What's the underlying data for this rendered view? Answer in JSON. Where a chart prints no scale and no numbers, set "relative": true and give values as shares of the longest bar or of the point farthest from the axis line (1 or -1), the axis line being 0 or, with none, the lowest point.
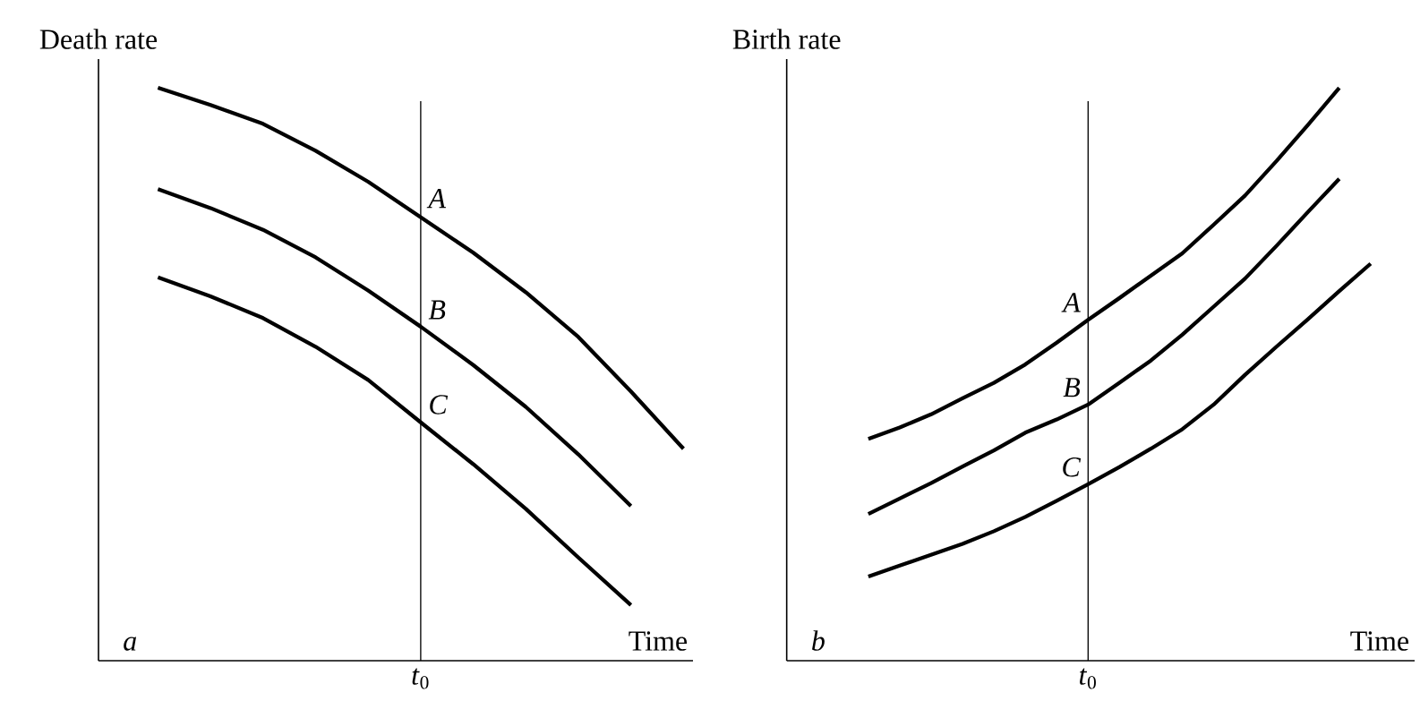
{
  "chart_data": [
    {
      "type": "line",
      "ylabel": "Death rate",
      "xlabel": "Time",
      "relative": true,
      "categories": [
        null,
        null,
        null,
        null,
        null,
        null,
        null,
        null,
        null,
        null,
        null
      ],
      "annotations": [
        "a",
        "*t*$_{0}$",
        "A",
        "B",
        "C"
      ],
      "series": [
        {
          "color": "#000000",
          "values": [
            1.0,
            0.97,
            0.937,
            0.89,
            0.836,
            0.774,
            0.712,
            0.643,
            0.565,
            0.47,
            0.37
          ]
        },
        {
          "color": "#000000",
          "values": [
            0.823,
            0.79,
            0.752,
            0.704,
            0.646,
            0.583,
            0.516,
            0.443,
            0.36,
            0.27,
            null
          ]
        },
        {
          "color": "#000000",
          "values": [
            0.669,
            0.636,
            0.598,
            0.548,
            0.49,
            0.416,
            0.343,
            0.265,
            0.18,
            0.097,
            null
          ]
        }
      ]
    },
    {
      "type": "line",
      "ylabel": "Birth rate",
      "xlabel": "Time",
      "relative": true,
      "categories": [
        null,
        null,
        null,
        null,
        null,
        null,
        null,
        null,
        null,
        null,
        null,
        null,
        null,
        null,
        null,
        null,
        null
      ],
      "annotations": [
        "b",
        "*t*$_{0}$",
        "A",
        "B",
        "C"
      ],
      "series": [
        {
          "color": "#000000",
          "values": [
            0.387,
            0.407,
            0.43,
            0.458,
            0.485,
            0.517,
            0.555,
            0.595,
            0.633,
            0.672,
            0.711,
            0.761,
            0.812,
            0.872,
            0.935,
            1.0,
            null
          ]
        },
        {
          "color": "#000000",
          "values": [
            0.256,
            0.283,
            0.31,
            0.339,
            0.367,
            0.398,
            0.421,
            0.447,
            0.485,
            0.524,
            0.569,
            0.618,
            0.667,
            0.724,
            0.783,
            0.841,
            null
          ]
        },
        {
          "color": "#000000",
          "values": [
            0.147,
            0.166,
            0.185,
            0.204,
            0.226,
            0.251,
            0.279,
            0.308,
            0.338,
            0.37,
            0.404,
            0.447,
            0.499,
            0.548,
            0.596,
            0.645,
            0.693
          ]
        }
      ]
    }
  ]
}
